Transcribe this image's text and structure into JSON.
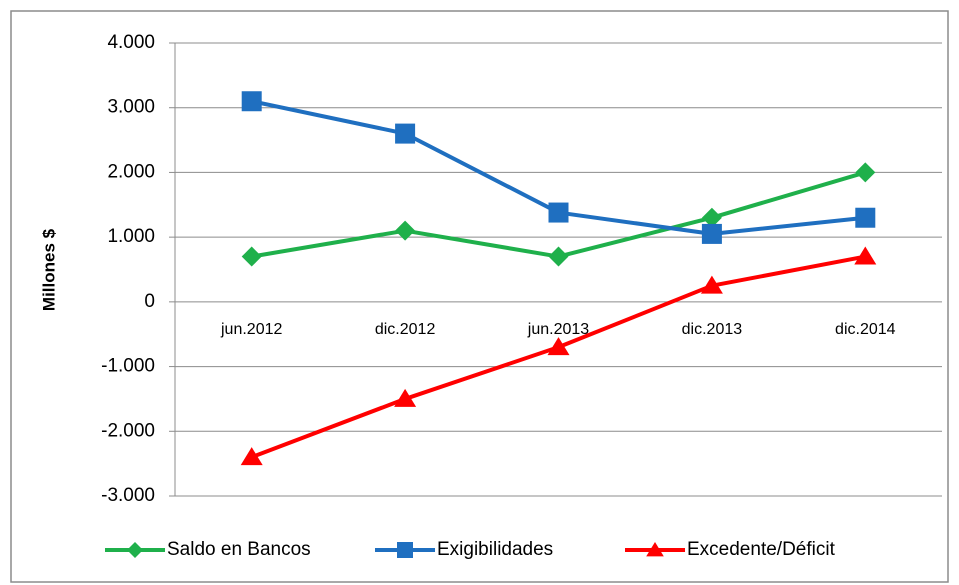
{
  "chart_data": {
    "type": "line",
    "y_label": "Millones $",
    "categories": [
      "jun.2012",
      "dic.2012",
      "jun.2013",
      "dic.2013",
      "dic.2014"
    ],
    "series": [
      {
        "name": "Saldo en Bancos",
        "color": "#1fb04b",
        "marker": "diamond",
        "values": [
          700,
          1100,
          700,
          1300,
          2000
        ]
      },
      {
        "name": "Exigibilidades",
        "color": "#1f6fc0",
        "marker": "square",
        "values": [
          3100,
          2600,
          1380,
          1050,
          1300
        ]
      },
      {
        "name": "Excedente/Déficit",
        "color": "#ff0000",
        "marker": "triangle",
        "values": [
          -2400,
          -1500,
          -700,
          250,
          700
        ]
      }
    ],
    "ylim": [
      -3000,
      4000
    ],
    "yticks": [
      {
        "value": -3000,
        "label": "-3.000"
      },
      {
        "value": -2000,
        "label": "-2.000"
      },
      {
        "value": -1000,
        "label": "-1.000"
      },
      0,
      {
        "value": 1000,
        "label": "1.000"
      },
      {
        "value": 2000,
        "label": "2.000"
      },
      {
        "value": 3000,
        "label": "3.000"
      },
      {
        "value": 4000,
        "label": "4.000"
      }
    ],
    "grid": true,
    "legend": "bottom"
  }
}
